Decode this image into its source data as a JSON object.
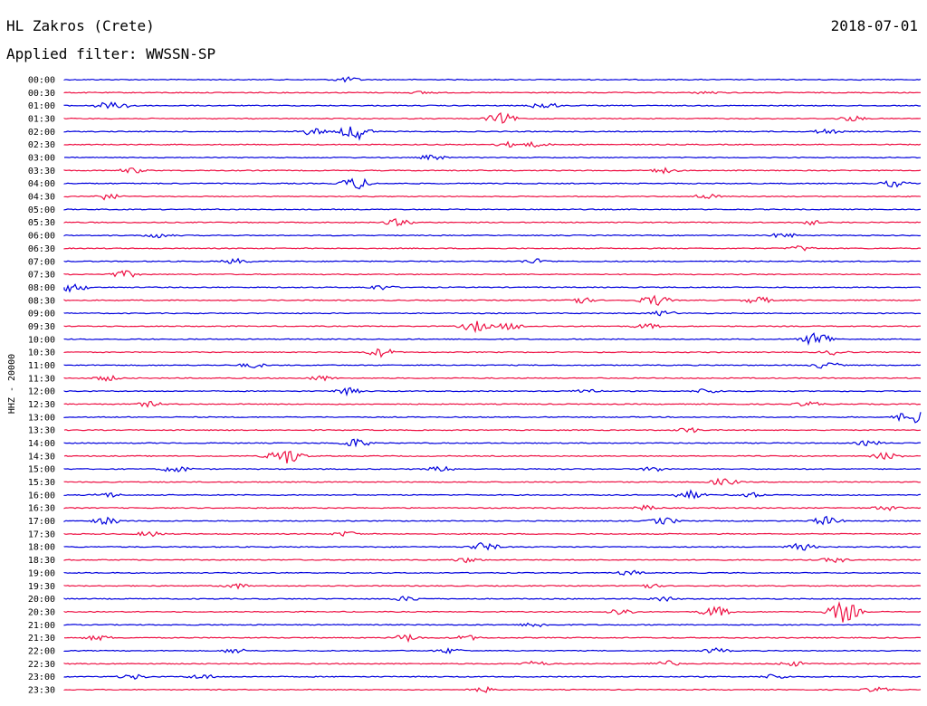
{
  "header": {
    "station": "HL Zakros (Crete)",
    "date": "2018-07-01",
    "filter": "Applied filter: WWSSN-SP"
  },
  "chart_data": {
    "type": "line",
    "ylabel": "HHZ - 20000",
    "colors": {
      "odd": "#0000dd",
      "even": "#ee1144"
    },
    "rows": [
      {
        "label": "00:00",
        "events": [
          {
            "x": 0.33,
            "a": 3
          }
        ]
      },
      {
        "label": "00:30",
        "events": [
          {
            "x": 0.42,
            "a": 2
          },
          {
            "x": 0.75,
            "a": 2
          }
        ]
      },
      {
        "label": "01:00",
        "events": [
          {
            "x": 0.05,
            "a": 4
          },
          {
            "x": 0.07,
            "a": 3
          },
          {
            "x": 0.56,
            "a": 4
          }
        ]
      },
      {
        "label": "01:30",
        "events": [
          {
            "x": 0.51,
            "a": 6
          },
          {
            "x": 0.92,
            "a": 3
          }
        ]
      },
      {
        "label": "02:00",
        "events": [
          {
            "x": 0.29,
            "a": 4
          },
          {
            "x": 0.34,
            "a": 9
          },
          {
            "x": 0.89,
            "a": 3
          }
        ]
      },
      {
        "label": "02:30",
        "events": [
          {
            "x": 0.52,
            "a": 3
          },
          {
            "x": 0.55,
            "a": 3
          }
        ]
      },
      {
        "label": "03:00",
        "events": [
          {
            "x": 0.43,
            "a": 3
          }
        ]
      },
      {
        "label": "03:30",
        "events": [
          {
            "x": 0.08,
            "a": 3
          },
          {
            "x": 0.7,
            "a": 3
          }
        ]
      },
      {
        "label": "04:00",
        "events": [
          {
            "x": 0.34,
            "a": 7
          },
          {
            "x": 0.97,
            "a": 4
          }
        ]
      },
      {
        "label": "04:30",
        "events": [
          {
            "x": 0.05,
            "a": 4
          },
          {
            "x": 0.75,
            "a": 3
          }
        ]
      },
      {
        "label": "05:00",
        "events": []
      },
      {
        "label": "05:30",
        "events": [
          {
            "x": 0.39,
            "a": 4
          },
          {
            "x": 0.87,
            "a": 3
          }
        ]
      },
      {
        "label": "06:00",
        "events": [
          {
            "x": 0.11,
            "a": 3
          },
          {
            "x": 0.84,
            "a": 3
          }
        ]
      },
      {
        "label": "06:30",
        "events": [
          {
            "x": 0.86,
            "a": 3
          }
        ]
      },
      {
        "label": "07:00",
        "events": [
          {
            "x": 0.2,
            "a": 3
          },
          {
            "x": 0.55,
            "a": 3
          }
        ]
      },
      {
        "label": "07:30",
        "events": [
          {
            "x": 0.07,
            "a": 4
          }
        ]
      },
      {
        "label": "08:00",
        "events": [
          {
            "x": 0.01,
            "a": 5
          },
          {
            "x": 0.37,
            "a": 3
          }
        ]
      },
      {
        "label": "08:30",
        "events": [
          {
            "x": 0.6,
            "a": 4
          },
          {
            "x": 0.69,
            "a": 6
          },
          {
            "x": 0.81,
            "a": 4
          }
        ]
      },
      {
        "label": "09:00",
        "events": [
          {
            "x": 0.7,
            "a": 3
          }
        ]
      },
      {
        "label": "09:30",
        "events": [
          {
            "x": 0.48,
            "a": 6
          },
          {
            "x": 0.52,
            "a": 4
          },
          {
            "x": 0.68,
            "a": 3
          }
        ]
      },
      {
        "label": "10:00",
        "events": [
          {
            "x": 0.88,
            "a": 8
          }
        ]
      },
      {
        "label": "10:30",
        "events": [
          {
            "x": 0.37,
            "a": 5
          },
          {
            "x": 0.9,
            "a": 3
          }
        ]
      },
      {
        "label": "11:00",
        "events": [
          {
            "x": 0.22,
            "a": 3
          },
          {
            "x": 0.89,
            "a": 4
          }
        ]
      },
      {
        "label": "11:30",
        "events": [
          {
            "x": 0.05,
            "a": 3
          },
          {
            "x": 0.3,
            "a": 3
          }
        ]
      },
      {
        "label": "12:00",
        "events": [
          {
            "x": 0.33,
            "a": 4
          },
          {
            "x": 0.61,
            "a": 3
          },
          {
            "x": 0.75,
            "a": 3
          }
        ]
      },
      {
        "label": "12:30",
        "events": [
          {
            "x": 0.1,
            "a": 3
          },
          {
            "x": 0.87,
            "a": 3
          }
        ]
      },
      {
        "label": "13:00",
        "events": [
          {
            "x": 0.99,
            "a": 8
          }
        ]
      },
      {
        "label": "13:30",
        "events": [
          {
            "x": 0.73,
            "a": 3
          }
        ]
      },
      {
        "label": "14:00",
        "events": [
          {
            "x": 0.34,
            "a": 5
          },
          {
            "x": 0.94,
            "a": 3
          }
        ]
      },
      {
        "label": "14:30",
        "events": [
          {
            "x": 0.25,
            "a": 5
          },
          {
            "x": 0.26,
            "a": 9
          },
          {
            "x": 0.96,
            "a": 4
          }
        ]
      },
      {
        "label": "15:00",
        "events": [
          {
            "x": 0.13,
            "a": 4
          },
          {
            "x": 0.44,
            "a": 3
          },
          {
            "x": 0.69,
            "a": 3
          }
        ]
      },
      {
        "label": "15:30",
        "events": [
          {
            "x": 0.77,
            "a": 4
          }
        ]
      },
      {
        "label": "16:00",
        "events": [
          {
            "x": 0.05,
            "a": 3
          },
          {
            "x": 0.73,
            "a": 5
          },
          {
            "x": 0.8,
            "a": 3
          }
        ]
      },
      {
        "label": "16:30",
        "events": [
          {
            "x": 0.68,
            "a": 3
          },
          {
            "x": 0.96,
            "a": 3
          }
        ]
      },
      {
        "label": "17:00",
        "events": [
          {
            "x": 0.05,
            "a": 4
          },
          {
            "x": 0.7,
            "a": 4
          },
          {
            "x": 0.89,
            "a": 5
          }
        ]
      },
      {
        "label": "17:30",
        "events": [
          {
            "x": 0.1,
            "a": 3
          },
          {
            "x": 0.33,
            "a": 3
          }
        ]
      },
      {
        "label": "18:00",
        "events": [
          {
            "x": 0.49,
            "a": 5
          },
          {
            "x": 0.86,
            "a": 4
          }
        ]
      },
      {
        "label": "18:30",
        "events": [
          {
            "x": 0.47,
            "a": 3
          },
          {
            "x": 0.9,
            "a": 3
          }
        ]
      },
      {
        "label": "19:00",
        "events": [
          {
            "x": 0.66,
            "a": 3
          }
        ]
      },
      {
        "label": "19:30",
        "events": [
          {
            "x": 0.2,
            "a": 3
          },
          {
            "x": 0.68,
            "a": 3
          }
        ]
      },
      {
        "label": "20:00",
        "events": [
          {
            "x": 0.4,
            "a": 3
          },
          {
            "x": 0.7,
            "a": 3
          }
        ]
      },
      {
        "label": "20:30",
        "events": [
          {
            "x": 0.65,
            "a": 4
          },
          {
            "x": 0.76,
            "a": 6
          },
          {
            "x": 0.91,
            "a": 12
          }
        ]
      },
      {
        "label": "21:00",
        "events": [
          {
            "x": 0.55,
            "a": 3
          }
        ]
      },
      {
        "label": "21:30",
        "events": [
          {
            "x": 0.04,
            "a": 3
          },
          {
            "x": 0.4,
            "a": 4
          },
          {
            "x": 0.47,
            "a": 3
          }
        ]
      },
      {
        "label": "22:00",
        "events": [
          {
            "x": 0.2,
            "a": 3
          },
          {
            "x": 0.45,
            "a": 3
          },
          {
            "x": 0.76,
            "a": 3
          }
        ]
      },
      {
        "label": "22:30",
        "events": [
          {
            "x": 0.55,
            "a": 3
          },
          {
            "x": 0.7,
            "a": 4
          },
          {
            "x": 0.85,
            "a": 3
          }
        ]
      },
      {
        "label": "23:00",
        "events": [
          {
            "x": 0.08,
            "a": 3
          },
          {
            "x": 0.16,
            "a": 3
          },
          {
            "x": 0.83,
            "a": 3
          }
        ]
      },
      {
        "label": "23:30",
        "events": [
          {
            "x": 0.49,
            "a": 3
          },
          {
            "x": 0.95,
            "a": 3
          }
        ]
      }
    ]
  }
}
